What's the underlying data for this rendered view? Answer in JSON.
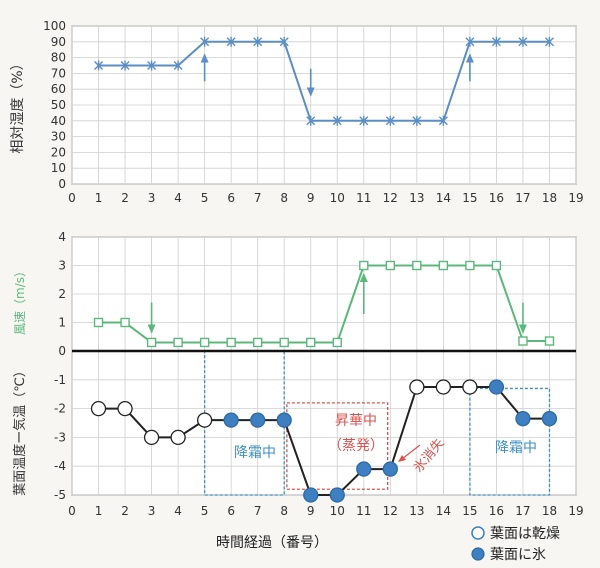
{
  "chart_data": [
    {
      "type": "line",
      "ylabel": "相対湿度（%）",
      "xlim": [
        0,
        19
      ],
      "ylim": [
        0,
        100
      ],
      "x_ticks": [
        0,
        1,
        2,
        3,
        4,
        5,
        6,
        7,
        8,
        9,
        10,
        11,
        12,
        13,
        14,
        15,
        16,
        17,
        18,
        19
      ],
      "y_ticks": [
        0,
        10,
        20,
        30,
        40,
        50,
        60,
        70,
        80,
        90,
        100
      ],
      "grid": true,
      "color": "#5b8ec6",
      "series": [
        {
          "x": [
            1,
            2,
            3,
            4,
            5,
            6,
            7,
            8,
            9,
            10,
            11,
            12,
            13,
            14,
            15,
            16,
            17,
            18
          ],
          "y": [
            75,
            75,
            75,
            75,
            90,
            90,
            90,
            90,
            40,
            40,
            40,
            40,
            40,
            40,
            90,
            90,
            90,
            90
          ]
        }
      ],
      "arrows": [
        {
          "x": 5,
          "direction": "up"
        },
        {
          "x": 9,
          "direction": "down"
        },
        {
          "x": 15,
          "direction": "up"
        }
      ]
    },
    {
      "type": "line",
      "xlabel": "時間経過（番号）",
      "xlim": [
        0,
        19
      ],
      "x_ticks": [
        0,
        1,
        2,
        3,
        4,
        5,
        6,
        7,
        8,
        9,
        10,
        11,
        12,
        13,
        14,
        15,
        16,
        17,
        18,
        19
      ],
      "grid": true,
      "wind": {
        "ylabel": "風速（m/s）",
        "ylim": [
          0,
          4
        ],
        "y_ticks": [
          0,
          1,
          2,
          3,
          4
        ],
        "color": "#5cb87a",
        "x": [
          1,
          2,
          3,
          4,
          5,
          6,
          7,
          8,
          9,
          10,
          11,
          12,
          13,
          14,
          15,
          16,
          17,
          18
        ],
        "y": [
          1,
          1,
          0.3,
          0.3,
          0.3,
          0.3,
          0.3,
          0.3,
          0.3,
          0.3,
          3,
          3,
          3,
          3,
          3,
          3,
          0.35,
          0.35
        ],
        "arrows": [
          {
            "x": 3,
            "direction": "down"
          },
          {
            "x": 11,
            "direction": "up"
          },
          {
            "x": 17,
            "direction": "down"
          }
        ]
      },
      "temp_diff": {
        "ylabel": "葉面温度ー気温（℃）",
        "ylim": [
          -5,
          0
        ],
        "y_ticks": [
          0,
          -1,
          -2,
          -3,
          -4,
          -5
        ],
        "x": [
          1,
          2,
          3,
          4,
          5,
          6,
          7,
          8,
          9,
          10,
          11,
          12,
          13,
          14,
          15,
          16,
          17,
          18
        ],
        "y": [
          -2,
          -2,
          -3,
          -3,
          -2.4,
          -2.4,
          -2.4,
          -2.4,
          -5,
          -5,
          -4.1,
          -4.1,
          -1.25,
          -1.25,
          -1.25,
          -1.25,
          -2.35,
          -2.35
        ],
        "state": [
          "dry",
          "dry",
          "dry",
          "dry",
          "dry",
          "ice",
          "ice",
          "ice",
          "ice",
          "ice",
          "ice",
          "ice",
          "dry",
          "dry",
          "dry",
          "ice",
          "ice",
          "ice"
        ]
      },
      "annotations": [
        {
          "text": "降霜中",
          "color": "#3d8fc4",
          "x_range": [
            5,
            8
          ],
          "y_range": [
            0,
            -5
          ]
        },
        {
          "text": "昇華中",
          "color": "#d9534f",
          "x_range": [
            8.1,
            11.9
          ],
          "y_range": [
            -1.8,
            -4.8
          ]
        },
        {
          "text": "（蒸発）",
          "color": "#d9534f"
        },
        {
          "text": "氷消失",
          "color": "#d9534f",
          "x": 12.5
        },
        {
          "text": "降霜中",
          "color": "#3d8fc4",
          "x_range": [
            15,
            18
          ],
          "y_range": [
            -1.3,
            -5
          ]
        }
      ],
      "legend": {
        "position": "bottom-right",
        "items": [
          {
            "marker": "open-circle",
            "label": "葉面は乾燥"
          },
          {
            "marker": "filled-circle",
            "label": "葉面に氷"
          }
        ]
      }
    }
  ]
}
